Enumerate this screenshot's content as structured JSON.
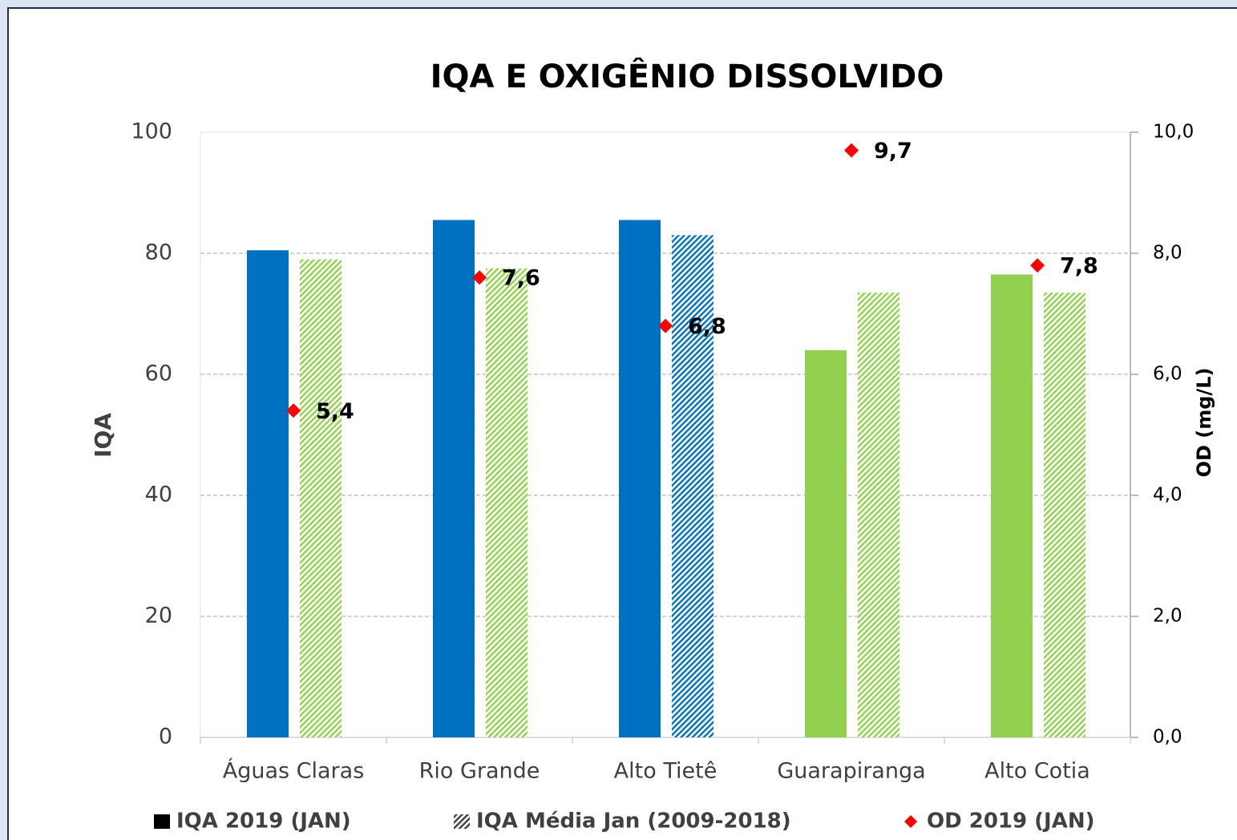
{
  "chart_data": {
    "type": "bar",
    "title": "IQA E OXIGÊNIO DISSOLVIDO",
    "y_label": "IQA",
    "y2_label": "OD (mg/L)",
    "categories": [
      "Águas Claras",
      "Rio Grande",
      "Alto Tietê",
      "Guarapiranga",
      "Alto Cotia"
    ],
    "series": [
      {
        "name": "IQA 2019 (JAN)",
        "values": [
          80.5,
          85.5,
          85.5,
          64,
          76.5
        ],
        "colors": [
          "#0070c0",
          "#0070c0",
          "#0070c0",
          "#92d050",
          "#92d050"
        ],
        "pattern": "solid"
      },
      {
        "name": "IQA Média Jan (2009-2018)",
        "values": [
          79,
          77.5,
          83,
          73.5,
          73.5
        ],
        "colors": [
          "#92d050",
          "#92d050",
          "#0070c0",
          "#92d050",
          "#92d050"
        ],
        "pattern": "hatch"
      },
      {
        "name": "OD 2019 (JAN)",
        "type": "scatter",
        "axis": "y2",
        "marker": "diamond",
        "color": "#ff0000",
        "values": [
          5.4,
          7.6,
          6.8,
          9.7,
          7.8
        ],
        "value_labels": [
          "5,4",
          "7,6",
          "6,8",
          "9,7",
          "7,8"
        ]
      }
    ],
    "ylim": [
      0,
      100
    ],
    "yticks": [
      0,
      20,
      40,
      60,
      80,
      100
    ],
    "y2lim": [
      0,
      10
    ],
    "y2ticks": [
      {
        "value": 0,
        "label": "0,0"
      },
      {
        "value": 2,
        "label": "2,0"
      },
      {
        "value": 4,
        "label": "4,0"
      },
      {
        "value": 6,
        "label": "6,0"
      },
      {
        "value": 8,
        "label": "8,0"
      },
      {
        "value": 10,
        "label": "10,0"
      }
    ],
    "grid": true,
    "legend": "bottom"
  }
}
